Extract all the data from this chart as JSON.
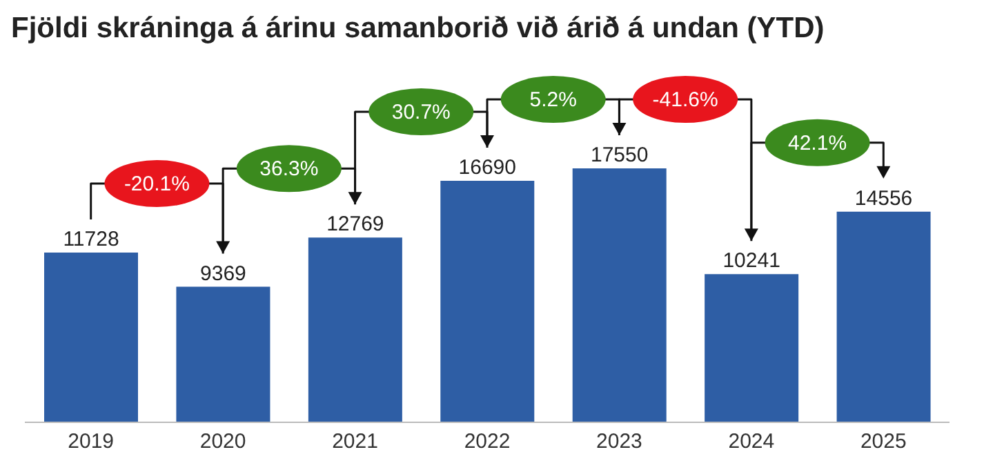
{
  "chart_data": {
    "type": "bar",
    "title": "Fjöldi skráninga á árinu samanborið við árið á undan (YTD)",
    "categories": [
      "2019",
      "2020",
      "2021",
      "2022",
      "2023",
      "2024",
      "2025"
    ],
    "values": [
      11728,
      9369,
      12769,
      16690,
      17550,
      10241,
      14556
    ],
    "color": "#2e5ea5",
    "data_labels": true,
    "grid": false,
    "tick_labels": "x",
    "annotations": [
      "-20.1%",
      "36.3%",
      "30.7%",
      "5.2%",
      "-41.6%",
      "42.1%"
    ]
  }
}
